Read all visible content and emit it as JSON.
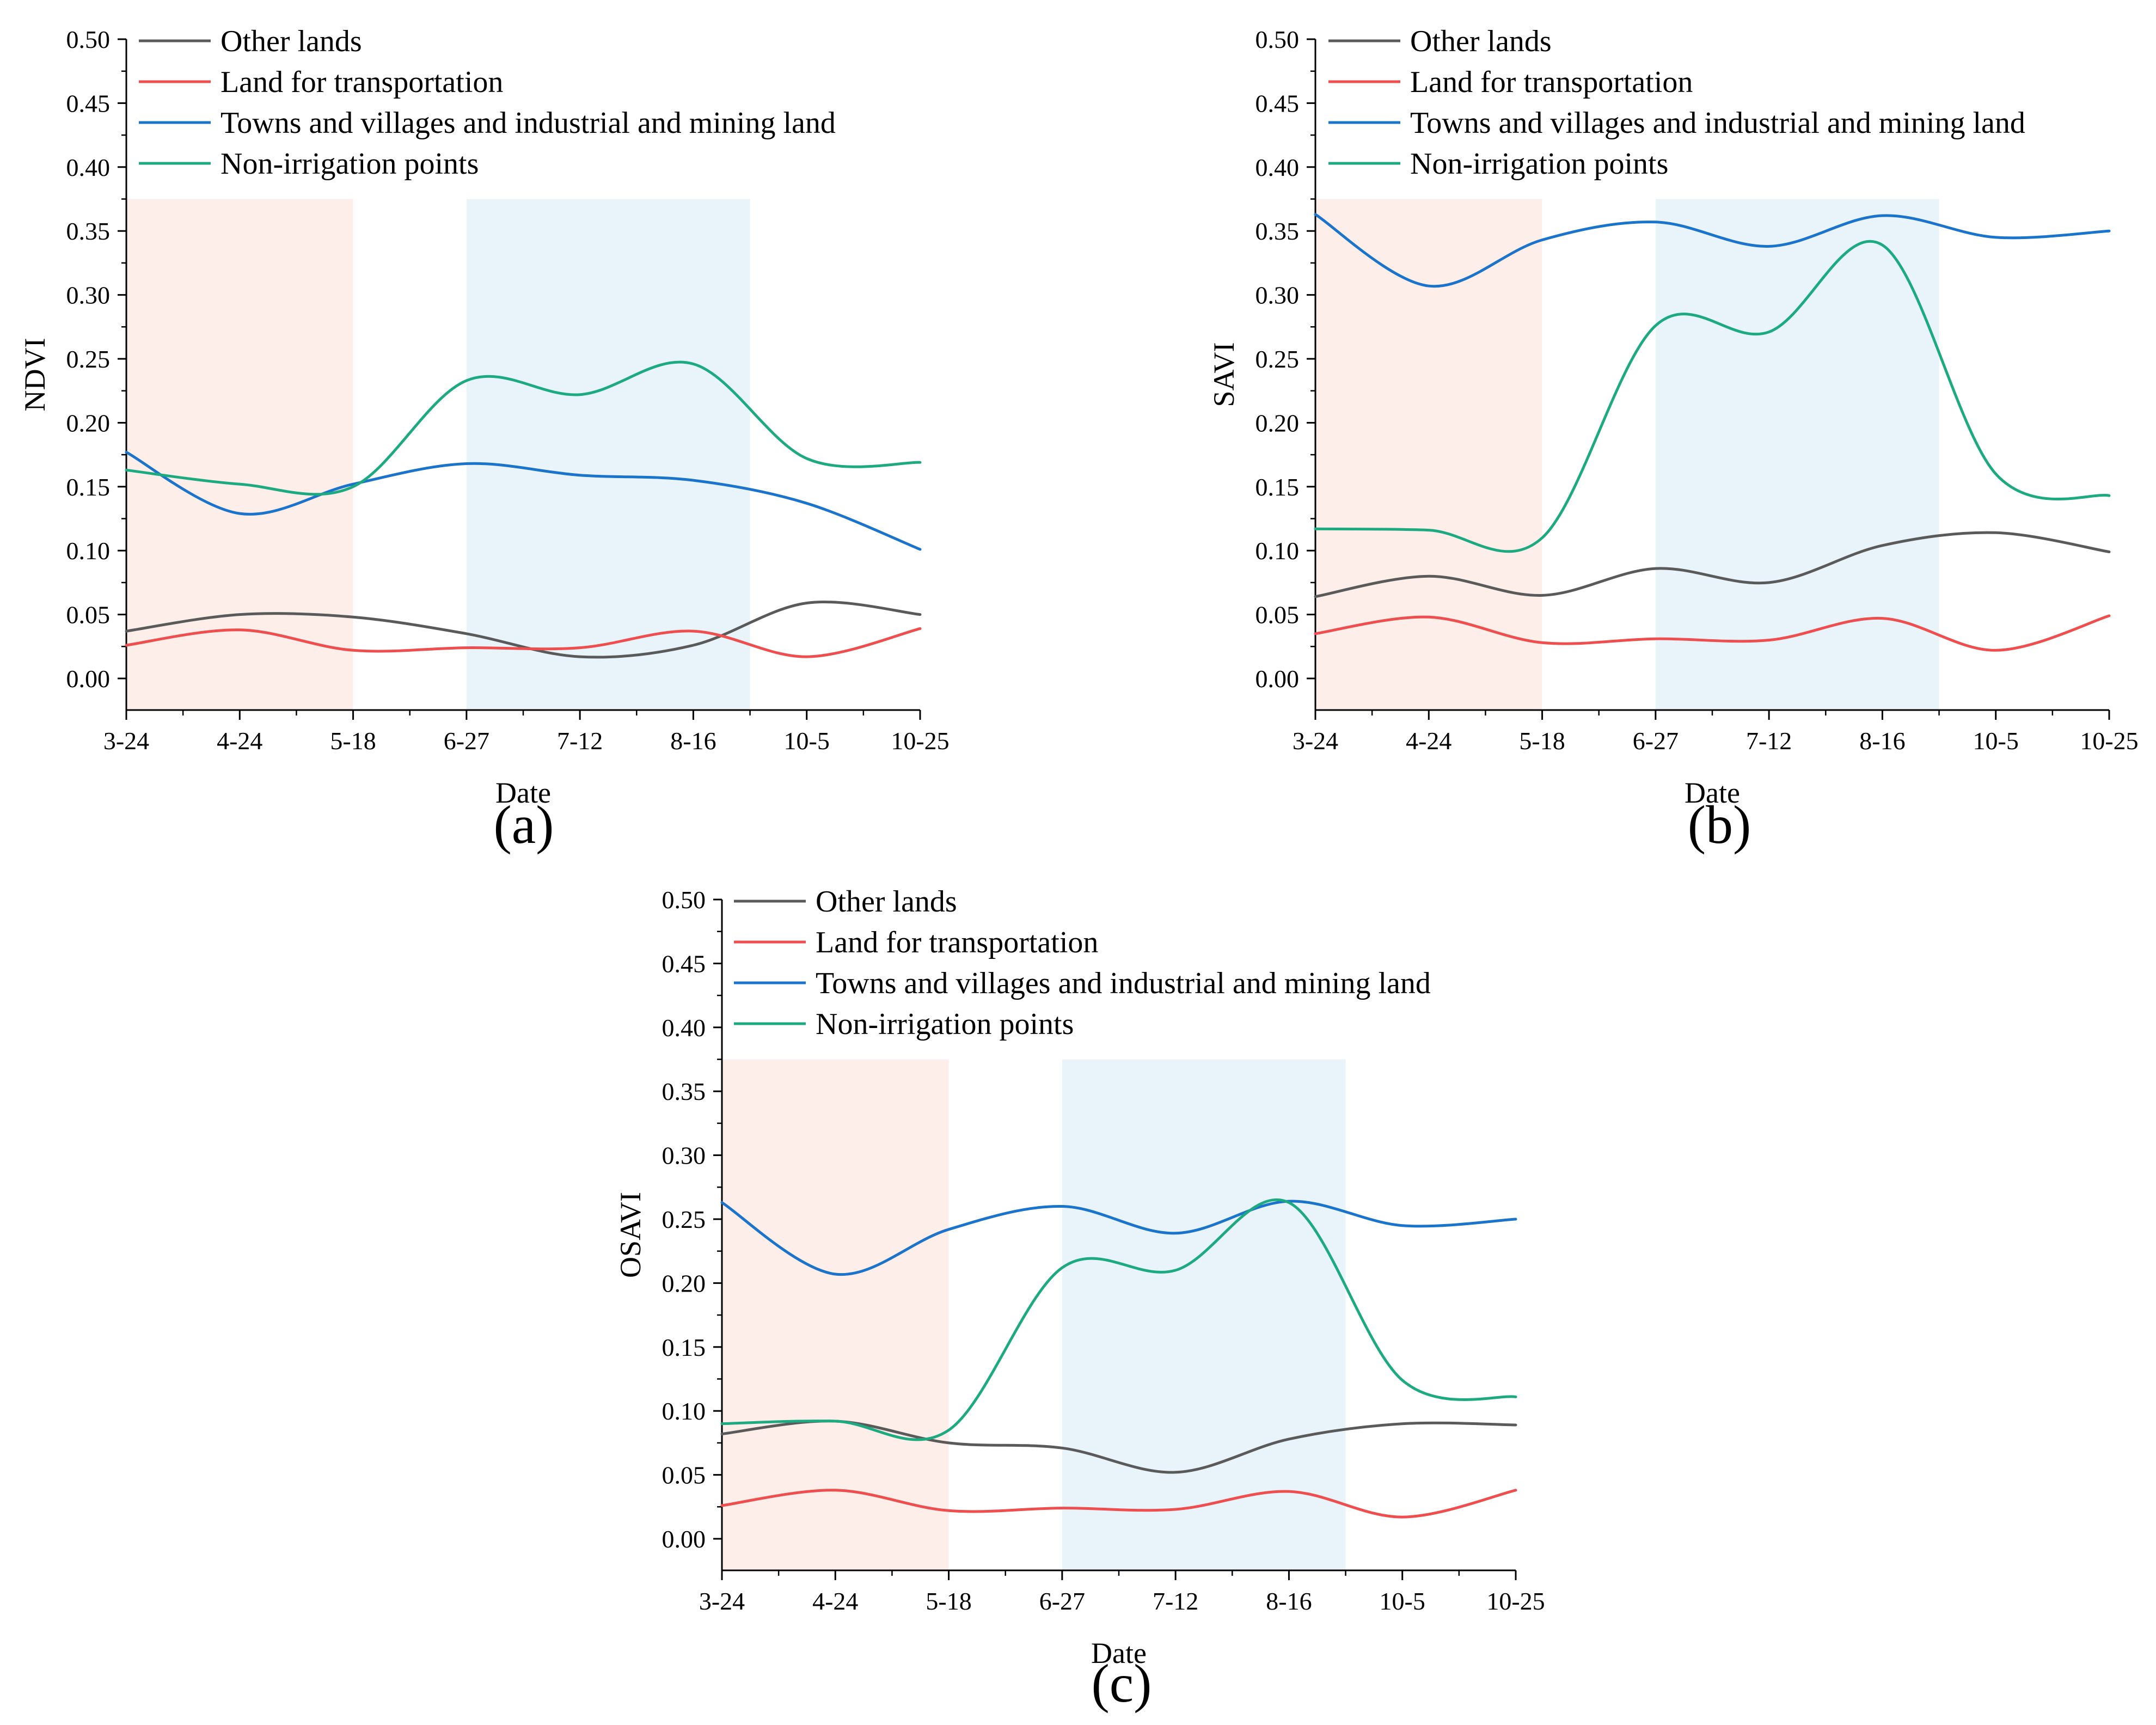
{
  "figure": {
    "colors": {
      "Other lands": "#5a5a5a",
      "Land for transportation": "#ee4e4e",
      "Towns and villages and industrial and mining land": "#1b74cc",
      "Non-irrigation points": "#1daa80",
      "shade_early": "#fdeeea",
      "shade_mid": "#e9f4fa"
    }
  },
  "chart_data": [
    {
      "type": "line",
      "panel_label": "(a)",
      "xlabel": "Date",
      "ylabel": "NDVI",
      "categories": [
        "3-24",
        "4-24",
        "5-18",
        "6-27",
        "7-12",
        "8-16",
        "10-5",
        "10-25"
      ],
      "ylim": [
        0,
        0.5
      ],
      "yticks": [
        "0.00",
        "0.05",
        "0.10",
        "0.15",
        "0.20",
        "0.25",
        "0.30",
        "0.35",
        "0.40",
        "0.45",
        "0.50"
      ],
      "shaded_regions": [
        {
          "from": 0,
          "to": 2,
          "color": "shade_early"
        },
        {
          "from": 3,
          "to": 5.5,
          "color": "shade_mid"
        }
      ],
      "legend": [
        "Other lands",
        "Land for transportation",
        "Towns and villages and industrial and mining land",
        "Non-irrigation points"
      ],
      "series": [
        {
          "name": "Other lands",
          "values": [
            0.037,
            0.05,
            0.048,
            0.035,
            0.017,
            0.026,
            0.059,
            0.05
          ]
        },
        {
          "name": "Land for transportation",
          "values": [
            0.026,
            0.038,
            0.022,
            0.024,
            0.024,
            0.037,
            0.017,
            0.039
          ]
        },
        {
          "name": "Towns and villages and industrial and mining land",
          "values": [
            0.177,
            0.129,
            0.152,
            0.168,
            0.159,
            0.155,
            0.137,
            0.101
          ]
        },
        {
          "name": "Non-irrigation points",
          "values": [
            0.163,
            0.152,
            0.15,
            0.233,
            0.222,
            0.246,
            0.172,
            0.169
          ]
        }
      ]
    },
    {
      "type": "line",
      "panel_label": "(b)",
      "xlabel": "Date",
      "ylabel": "SAVI",
      "categories": [
        "3-24",
        "4-24",
        "5-18",
        "6-27",
        "7-12",
        "8-16",
        "10-5",
        "10-25"
      ],
      "ylim": [
        0,
        0.5
      ],
      "yticks": [
        "0.00",
        "0.05",
        "0.10",
        "0.15",
        "0.20",
        "0.25",
        "0.30",
        "0.35",
        "0.40",
        "0.45",
        "0.50"
      ],
      "shaded_regions": [
        {
          "from": 0,
          "to": 2,
          "color": "shade_early"
        },
        {
          "from": 3,
          "to": 5.5,
          "color": "shade_mid"
        }
      ],
      "legend": [
        "Other lands",
        "Land for transportation",
        "Towns and villages and industrial and mining land",
        "Non-irrigation points"
      ],
      "series": [
        {
          "name": "Other lands",
          "values": [
            0.064,
            0.08,
            0.065,
            0.086,
            0.075,
            0.104,
            0.114,
            0.099
          ]
        },
        {
          "name": "Land for transportation",
          "values": [
            0.035,
            0.048,
            0.028,
            0.031,
            0.03,
            0.047,
            0.022,
            0.049
          ]
        },
        {
          "name": "Towns and villages and industrial and mining land",
          "values": [
            0.363,
            0.307,
            0.343,
            0.357,
            0.338,
            0.362,
            0.345,
            0.35
          ]
        },
        {
          "name": "Non-irrigation points",
          "values": [
            0.117,
            0.116,
            0.11,
            0.276,
            0.271,
            0.339,
            0.16,
            0.143
          ]
        }
      ]
    },
    {
      "type": "line",
      "panel_label": "(c)",
      "xlabel": "Date",
      "ylabel": "OSAVI",
      "categories": [
        "3-24",
        "4-24",
        "5-18",
        "6-27",
        "7-12",
        "8-16",
        "10-5",
        "10-25"
      ],
      "ylim": [
        0,
        0.5
      ],
      "yticks": [
        "0.00",
        "0.05",
        "0.10",
        "0.15",
        "0.20",
        "0.25",
        "0.30",
        "0.35",
        "0.40",
        "0.45",
        "0.50"
      ],
      "shaded_regions": [
        {
          "from": 0,
          "to": 2,
          "color": "shade_early"
        },
        {
          "from": 3,
          "to": 5.5,
          "color": "shade_mid"
        }
      ],
      "legend": [
        "Other lands",
        "Land for transportation",
        "Towns and villages and industrial and mining land",
        "Non-irrigation points"
      ],
      "series": [
        {
          "name": "Other lands",
          "values": [
            0.082,
            0.092,
            0.075,
            0.071,
            0.052,
            0.078,
            0.09,
            0.089
          ]
        },
        {
          "name": "Land for transportation",
          "values": [
            0.026,
            0.038,
            0.022,
            0.024,
            0.023,
            0.037,
            0.017,
            0.038
          ]
        },
        {
          "name": "Towns and villages and industrial and mining land",
          "values": [
            0.263,
            0.207,
            0.242,
            0.26,
            0.239,
            0.264,
            0.245,
            0.25
          ]
        },
        {
          "name": "Non-irrigation points",
          "values": [
            0.09,
            0.092,
            0.085,
            0.212,
            0.21,
            0.263,
            0.124,
            0.111
          ]
        }
      ]
    }
  ]
}
